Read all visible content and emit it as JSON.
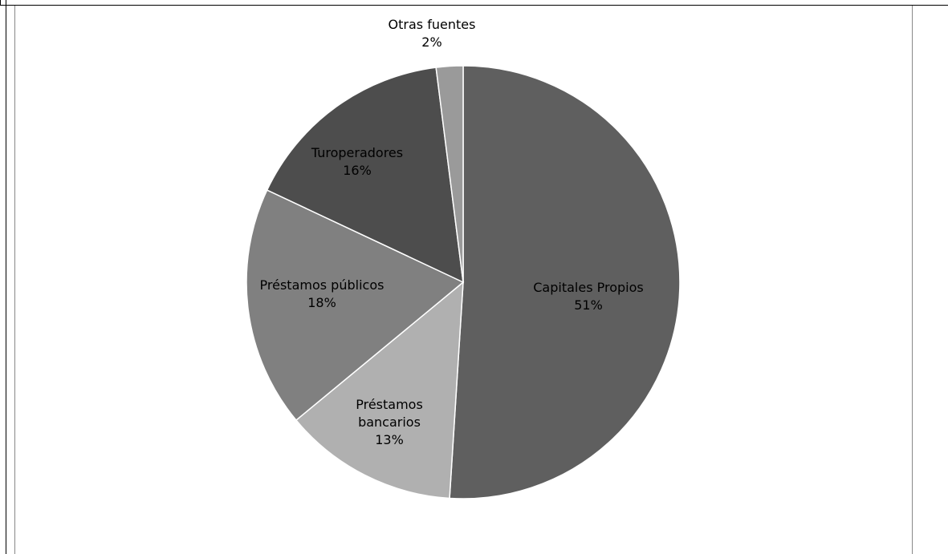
{
  "chart_data": {
    "type": "pie",
    "title": "",
    "slices": [
      {
        "label": "Capitales Propios",
        "value": 51,
        "display": "51%",
        "color": "#5f5f5f"
      },
      {
        "label": "Préstamos bancarios",
        "label_lines": [
          "Préstamos",
          "bancarios"
        ],
        "value": 13,
        "display": "13%",
        "color": "#b0b0b0"
      },
      {
        "label": "Préstamos públicos",
        "value": 18,
        "display": "18%",
        "color": "#808080"
      },
      {
        "label": "Turoperadores",
        "value": 16,
        "display": "16%",
        "color": "#4d4d4d"
      },
      {
        "label": "Otras fuentes",
        "value": 2,
        "display": "2%",
        "color": "#9a9a9a"
      }
    ],
    "legend": "none",
    "start_angle": "12 o'clock",
    "direction": "clockwise"
  }
}
